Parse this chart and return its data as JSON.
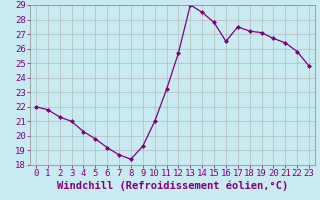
{
  "x": [
    0,
    1,
    2,
    3,
    4,
    5,
    6,
    7,
    8,
    9,
    10,
    11,
    12,
    13,
    14,
    15,
    16,
    17,
    18,
    19,
    20,
    21,
    22,
    23
  ],
  "y": [
    22.0,
    21.8,
    21.3,
    21.0,
    20.3,
    19.8,
    19.2,
    18.7,
    18.4,
    19.3,
    21.0,
    23.2,
    25.7,
    29.0,
    28.5,
    27.8,
    26.5,
    27.5,
    27.2,
    27.1,
    26.7,
    26.4,
    25.8,
    24.8
  ],
  "line_color": "#800080",
  "marker_color": "#800080",
  "bg_color": "#c8eaf0",
  "grid_color": "#aaaaaa",
  "xlabel": "Windchill (Refroidissement éolien,°C)",
  "xlabel_color": "#800080",
  "ylim": [
    18,
    29
  ],
  "yticks": [
    18,
    19,
    20,
    21,
    22,
    23,
    24,
    25,
    26,
    27,
    28,
    29
  ],
  "xticks": [
    0,
    1,
    2,
    3,
    4,
    5,
    6,
    7,
    8,
    9,
    10,
    11,
    12,
    13,
    14,
    15,
    16,
    17,
    18,
    19,
    20,
    21,
    22,
    23
  ],
  "xtick_labels": [
    "0",
    "1",
    "2",
    "3",
    "4",
    "5",
    "6",
    "7",
    "8",
    "9",
    "10",
    "11",
    "12",
    "13",
    "14",
    "15",
    "16",
    "17",
    "18",
    "19",
    "20",
    "21",
    "22",
    "23"
  ],
  "tick_color": "#800080",
  "font_size": 6.5,
  "xlabel_font_size": 7.5
}
